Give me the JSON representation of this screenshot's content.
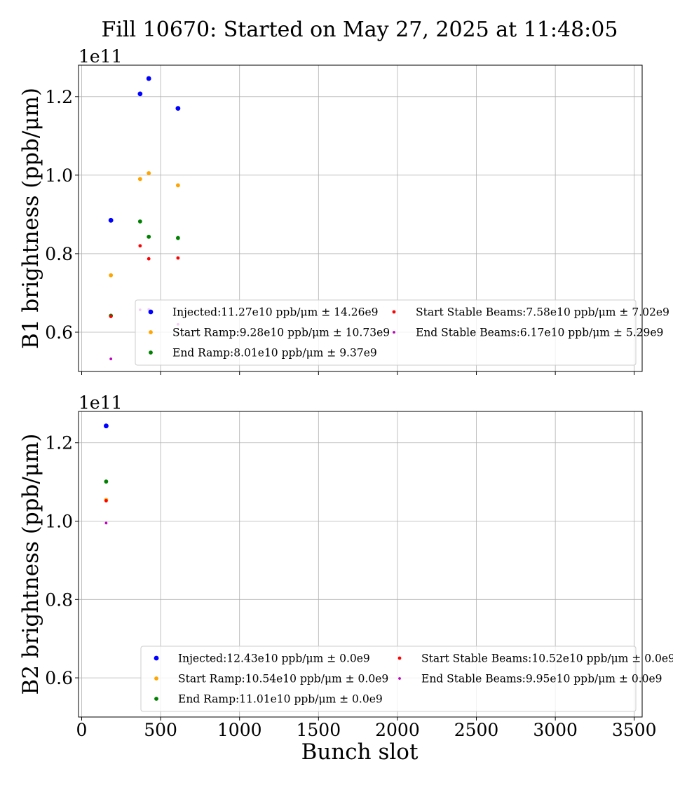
{
  "figure": {
    "title": "Fill 10670: Started on May 27, 2025 at 11:48:05",
    "xlabel": "Bunch slot"
  },
  "colors": {
    "Injected": "#0000ff",
    "Start Ramp": "#ffa500",
    "End Ramp": "#008000",
    "Start Stable Beams": "#ff0000",
    "End Stable Beams": "#bf00bf"
  },
  "chart_data": [
    {
      "type": "scatter",
      "ylabel": "B1 brightness (ppb/μm)",
      "y_offset_label": "1e11",
      "xlim": [
        -20,
        3550
      ],
      "ylim": [
        50000000000.0,
        128000000000.0
      ],
      "x_ticks": [
        0,
        500,
        1000,
        1500,
        2000,
        2500,
        3000,
        3500
      ],
      "x_tick_labels": [
        "0",
        "500",
        "1000",
        "1500",
        "2000",
        "2500",
        "3000",
        "3500"
      ],
      "x_tick_labels_visible": false,
      "y_ticks": [
        60000000000.0,
        80000000000.0,
        100000000000.0,
        120000000000.0
      ],
      "y_tick_labels": [
        "0.6",
        "0.8",
        "1.0",
        "1.2"
      ],
      "grid": true,
      "legend_placement": "lower-right",
      "legend_columns": 2,
      "series": [
        {
          "name": "Injected",
          "color": "#0000ff",
          "marker_size": 6,
          "legend": "Injected:11.27e10 ppb/μm ± 14.26e9",
          "x": [
            185,
            370,
            425,
            610
          ],
          "y": [
            88500000000.0,
            120700000000.0,
            124600000000.0,
            117000000000.0
          ]
        },
        {
          "name": "Start Ramp",
          "color": "#ffa500",
          "marker_size": 5,
          "legend": "Start Ramp:9.28e10 ppb/μm ± 10.73e9",
          "x": [
            185,
            370,
            425,
            610
          ],
          "y": [
            74500000000.0,
            99000000000.0,
            100500000000.0,
            97400000000.0
          ]
        },
        {
          "name": "End Ramp",
          "color": "#008000",
          "marker_size": 5,
          "legend": "End Ramp:8.01e10 ppb/μm ± 9.37e9",
          "x": [
            185,
            370,
            425,
            610
          ],
          "y": [
            64200000000.0,
            88200000000.0,
            84300000000.0,
            84000000000.0
          ]
        },
        {
          "name": "Start Stable Beams",
          "color": "#ff0000",
          "marker_size": 4,
          "legend": "Start Stable Beams:7.58e10 ppb/μm ± 7.02e9",
          "x": [
            185,
            370,
            425,
            610
          ],
          "y": [
            64000000000.0,
            82000000000.0,
            78700000000.0,
            78900000000.0
          ]
        },
        {
          "name": "End Stable Beams",
          "color": "#bf00bf",
          "marker_size": 3,
          "legend": "End Stable Beams:6.17e10 ppb/μm ± 5.29e9",
          "x": [
            185,
            370,
            425,
            610
          ],
          "y": [
            53200000000.0,
            65700000000.0,
            65800000000.0,
            62000000000.0
          ]
        }
      ]
    },
    {
      "type": "scatter",
      "ylabel": "B2 brightness (ppb/μm)",
      "y_offset_label": "1e11",
      "xlabel": "Bunch slot",
      "xlim": [
        -20,
        3550
      ],
      "ylim": [
        50000000000.0,
        128000000000.0
      ],
      "x_ticks": [
        0,
        500,
        1000,
        1500,
        2000,
        2500,
        3000,
        3500
      ],
      "x_tick_labels": [
        "0",
        "500",
        "1000",
        "1500",
        "2000",
        "2500",
        "3000",
        "3500"
      ],
      "x_tick_labels_visible": true,
      "y_ticks": [
        60000000000.0,
        80000000000.0,
        100000000000.0,
        120000000000.0
      ],
      "y_tick_labels": [
        "0.6",
        "0.8",
        "1.0",
        "1.2"
      ],
      "grid": true,
      "legend_placement": "lower-right",
      "legend_columns": 2,
      "series": [
        {
          "name": "Injected",
          "color": "#0000ff",
          "marker_size": 6,
          "legend": "Injected:12.43e10 ppb/μm ± 0.0e9",
          "x": [
            155
          ],
          "y": [
            124300000000.0
          ]
        },
        {
          "name": "Start Ramp",
          "color": "#ffa500",
          "marker_size": 5,
          "legend": "Start Ramp:10.54e10 ppb/μm ± 0.0e9",
          "x": [
            155
          ],
          "y": [
            105400000000.0
          ]
        },
        {
          "name": "End Ramp",
          "color": "#008000",
          "marker_size": 5,
          "legend": "End Ramp:11.01e10 ppb/μm ± 0.0e9",
          "x": [
            155
          ],
          "y": [
            110100000000.0
          ]
        },
        {
          "name": "Start Stable Beams",
          "color": "#ff0000",
          "marker_size": 4,
          "legend": "Start Stable Beams:10.52e10 ppb/μm ± 0.0e9",
          "x": [
            155
          ],
          "y": [
            105200000000.0
          ]
        },
        {
          "name": "End Stable Beams",
          "color": "#bf00bf",
          "marker_size": 3,
          "legend": "End Stable Beams:9.95e10 ppb/μm ± 0.0e9",
          "x": [
            155
          ],
          "y": [
            99500000000.0
          ]
        }
      ]
    }
  ]
}
